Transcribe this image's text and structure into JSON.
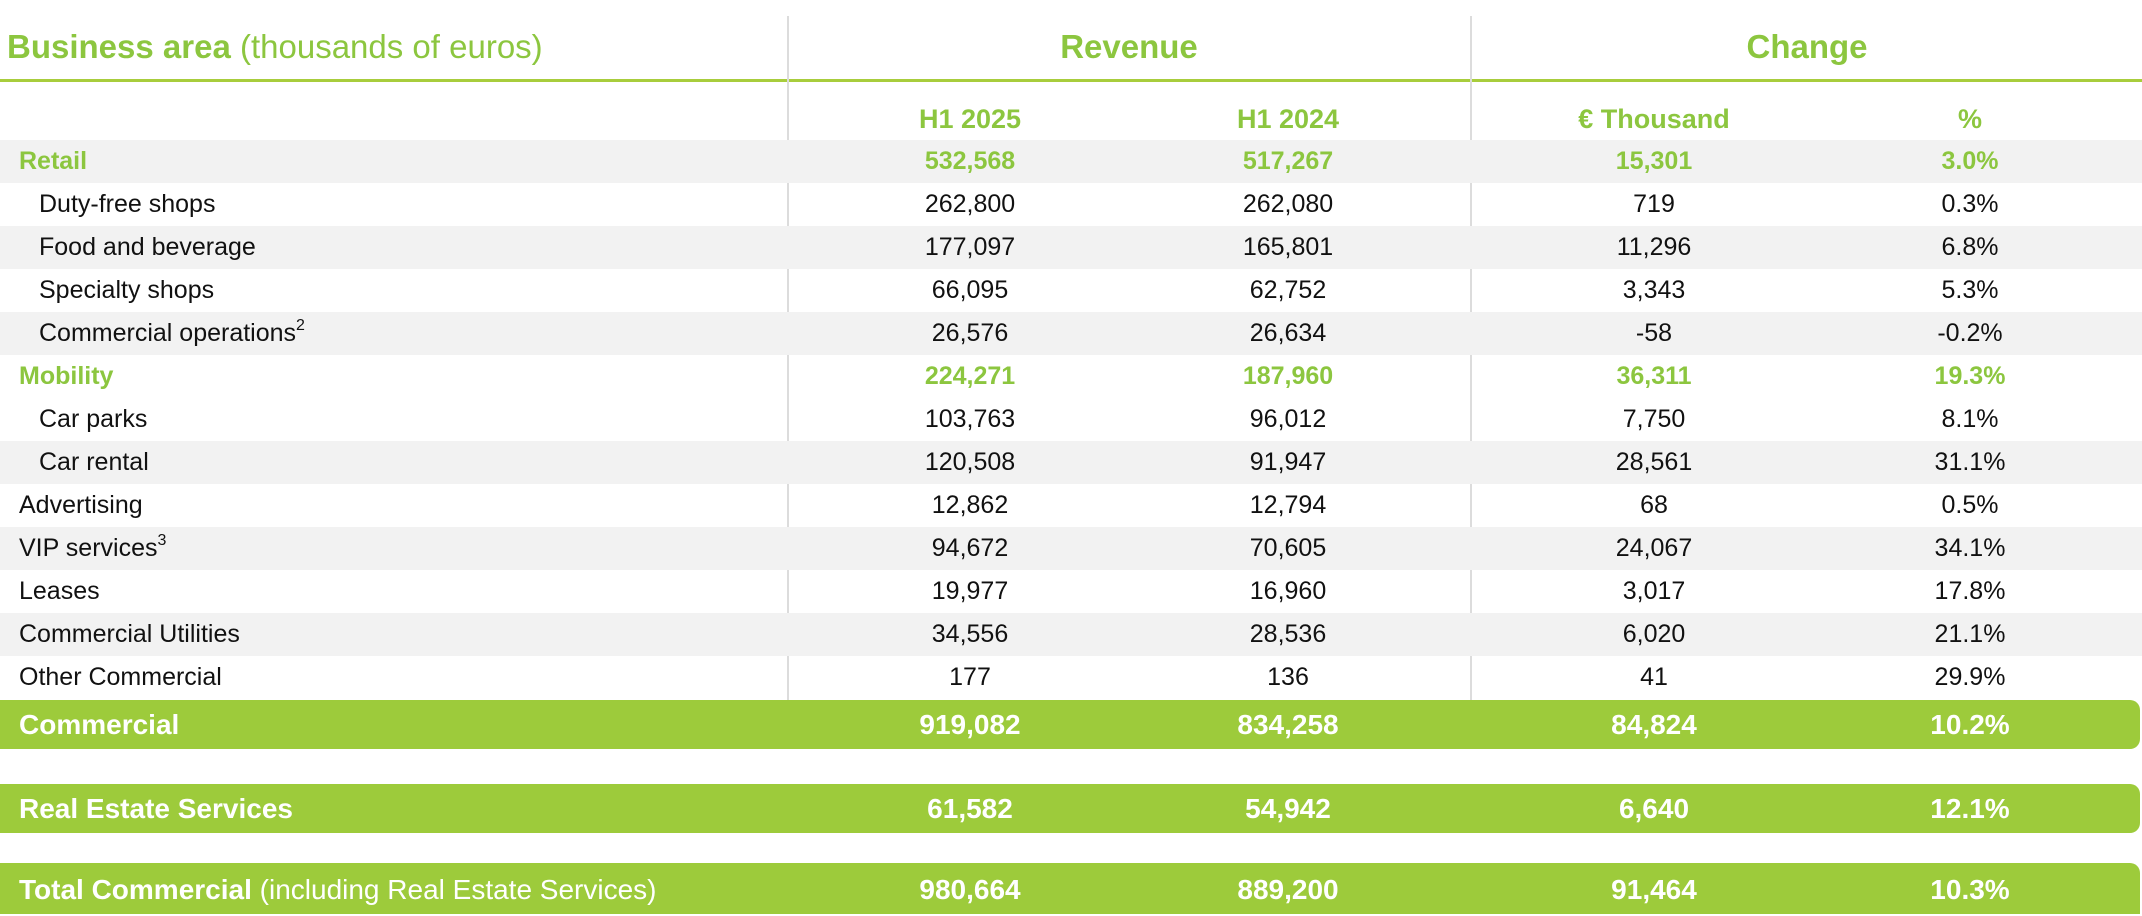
{
  "header": {
    "business_area_label": "Business area",
    "units_label": "(thousands of euros)",
    "revenue_group": "Revenue",
    "change_group": "Change"
  },
  "columns": {
    "h1_2025": "H1 2025",
    "h1_2024": "H1 2024",
    "change_abs": "€ Thousand",
    "change_pct": "%"
  },
  "rows": [
    {
      "label": "Retail",
      "sup": "",
      "h1_2025": "532,568",
      "h1_2024": "517,267",
      "change_abs": "15,301",
      "change_pct": "3.0%"
    },
    {
      "label": "Duty-free shops",
      "sup": "",
      "h1_2025": "262,800",
      "h1_2024": "262,080",
      "change_abs": "719",
      "change_pct": "0.3%"
    },
    {
      "label": "Food and beverage",
      "sup": "",
      "h1_2025": "177,097",
      "h1_2024": "165,801",
      "change_abs": "11,296",
      "change_pct": "6.8%"
    },
    {
      "label": "Specialty shops",
      "sup": "",
      "h1_2025": "66,095",
      "h1_2024": "62,752",
      "change_abs": "3,343",
      "change_pct": "5.3%"
    },
    {
      "label": "Commercial operations",
      "sup": "2",
      "h1_2025": "26,576",
      "h1_2024": "26,634",
      "change_abs": "-58",
      "change_pct": "-0.2%"
    },
    {
      "label": "Mobility",
      "sup": "",
      "h1_2025": "224,271",
      "h1_2024": "187,960",
      "change_abs": "36,311",
      "change_pct": "19.3%"
    },
    {
      "label": "Car parks",
      "sup": "",
      "h1_2025": "103,763",
      "h1_2024": "96,012",
      "change_abs": "7,750",
      "change_pct": "8.1%"
    },
    {
      "label": "Car rental",
      "sup": "",
      "h1_2025": "120,508",
      "h1_2024": "91,947",
      "change_abs": "28,561",
      "change_pct": "31.1%"
    },
    {
      "label": "Advertising",
      "sup": "",
      "h1_2025": "12,862",
      "h1_2024": "12,794",
      "change_abs": "68",
      "change_pct": "0.5%"
    },
    {
      "label": "VIP services",
      "sup": "3",
      "h1_2025": "94,672",
      "h1_2024": "70,605",
      "change_abs": "24,067",
      "change_pct": "34.1%"
    },
    {
      "label": "Leases",
      "sup": "",
      "h1_2025": "19,977",
      "h1_2024": "16,960",
      "change_abs": "3,017",
      "change_pct": "17.8%"
    },
    {
      "label": "Commercial Utilities",
      "sup": "",
      "h1_2025": "34,556",
      "h1_2024": "28,536",
      "change_abs": "6,020",
      "change_pct": "21.1%"
    },
    {
      "label": "Other Commercial",
      "sup": "",
      "h1_2025": "177",
      "h1_2024": "136",
      "change_abs": "41",
      "change_pct": "29.9%"
    }
  ],
  "totals": [
    {
      "label": "Commercial",
      "label_suffix": "",
      "h1_2025": "919,082",
      "h1_2024": "834,258",
      "change_abs": "84,824",
      "change_pct": "10.2%"
    },
    {
      "label": "Real Estate Services",
      "label_suffix": "",
      "h1_2025": "61,582",
      "h1_2024": "54,942",
      "change_abs": "6,640",
      "change_pct": "12.1%"
    },
    {
      "label": "Total Commercial",
      "label_suffix": "(including Real Estate Services)",
      "h1_2025": "980,664",
      "h1_2024": "889,200",
      "change_abs": "91,464",
      "change_pct": "10.3%"
    }
  ],
  "colors": {
    "accent_green": "#8cc63f",
    "band_green": "#9dcb3b",
    "row_shade": "#f2f2f2"
  }
}
